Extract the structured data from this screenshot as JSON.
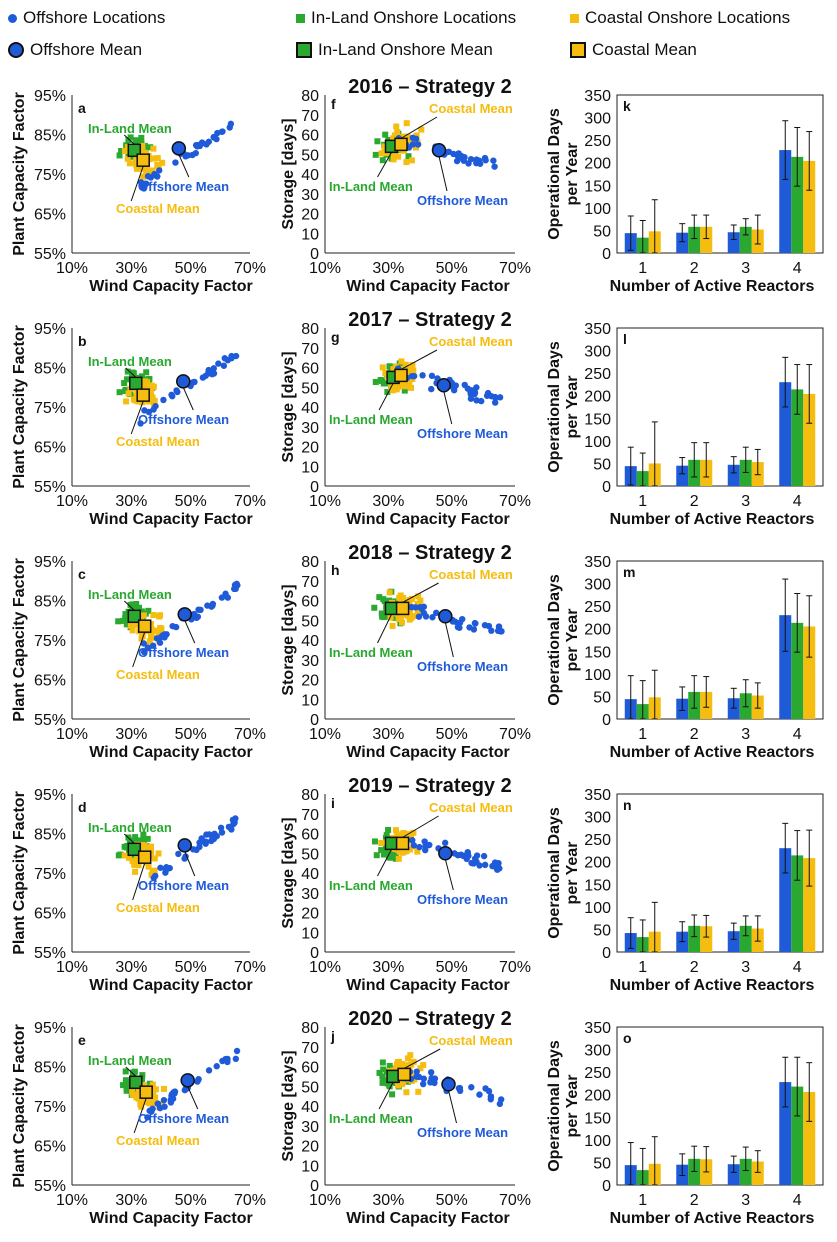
{
  "colors": {
    "offshore": "#1f5bd8",
    "inland": "#2aa830",
    "coastal": "#f5bd0f"
  },
  "legend": {
    "offshore_locations": "Offshore Locations",
    "inland_locations": "In-Land Onshore Locations",
    "coastal_locations": "Coastal Onshore Locations",
    "offshore_mean": "Offshore Mean",
    "inland_mean": "In-Land Onshore Mean",
    "coastal_mean": "Coastal Mean"
  },
  "axes": {
    "wind_label": "Wind Capacity Factor",
    "plant_label": "Plant Capacity Factor",
    "storage_label": "Storage [days]",
    "days_label_line1": "Operational Days",
    "days_label_line2": "per Year",
    "reactors_label": "Number of Active Reactors",
    "pct_ticks": [
      "10%",
      "30%",
      "50%",
      "70%"
    ],
    "plant_ticks": [
      "55%",
      "65%",
      "75%",
      "85%",
      "95%"
    ],
    "storage_ticks": [
      "0",
      "10",
      "20",
      "30",
      "40",
      "50",
      "60",
      "70",
      "80"
    ],
    "days_ticks": [
      "0",
      "50",
      "100",
      "150",
      "200",
      "250",
      "300",
      "350"
    ],
    "reactor_ticks": [
      "1",
      "2",
      "3",
      "4"
    ]
  },
  "annotations": {
    "inland_mean": "In-Land Mean",
    "coastal_mean": "Coastal Mean",
    "offshore_mean": "Offshore Mean"
  },
  "chart_data": [
    {
      "year_title": "2016 – Strategy 2",
      "type": "scatter",
      "panel_letters": [
        "a",
        "f",
        "k"
      ],
      "means": {
        "offshore": {
          "cf": 0.46,
          "plant": 0.815,
          "storage": 52
        },
        "inland": {
          "cf": 0.31,
          "plant": 0.81,
          "storage": 54
        },
        "coastal": {
          "cf": 0.34,
          "plant": 0.785,
          "storage": 55
        }
      },
      "bars": {
        "offshore": [
          44,
          45,
          46,
          228
        ],
        "inland": [
          34,
          58,
          58,
          213
        ],
        "coastal": [
          48,
          58,
          52,
          204
        ]
      },
      "errors": {
        "offshore": [
          38,
          20,
          16,
          65
        ],
        "inland": [
          38,
          26,
          18,
          65
        ],
        "coastal": [
          70,
          26,
          32,
          65
        ]
      }
    },
    {
      "year_title": "2017 – Strategy 2",
      "type": "scatter",
      "panel_letters": [
        "b",
        "g",
        "l"
      ],
      "means": {
        "offshore": {
          "cf": 0.475,
          "plant": 0.815,
          "storage": 51
        },
        "inland": {
          "cf": 0.315,
          "plant": 0.81,
          "storage": 55
        },
        "coastal": {
          "cf": 0.34,
          "plant": 0.78,
          "storage": 56
        }
      },
      "bars": {
        "offshore": [
          44,
          45,
          47,
          230
        ],
        "inland": [
          33,
          58,
          58,
          214
        ],
        "coastal": [
          50,
          58,
          53,
          204
        ]
      },
      "errors": {
        "offshore": [
          42,
          18,
          18,
          55
        ],
        "inland": [
          40,
          38,
          28,
          55
        ],
        "coastal": [
          92,
          38,
          28,
          65
        ]
      }
    },
    {
      "year_title": "2018 – Strategy 2",
      "type": "scatter",
      "panel_letters": [
        "c",
        "h",
        "m"
      ],
      "means": {
        "offshore": {
          "cf": 0.48,
          "plant": 0.815,
          "storage": 52
        },
        "inland": {
          "cf": 0.31,
          "plant": 0.81,
          "storage": 56
        },
        "coastal": {
          "cf": 0.345,
          "plant": 0.785,
          "storage": 56
        }
      },
      "bars": {
        "offshore": [
          44,
          45,
          46,
          230
        ],
        "inland": [
          33,
          60,
          57,
          213
        ],
        "coastal": [
          48,
          60,
          52,
          205
        ]
      },
      "errors": {
        "offshore": [
          52,
          26,
          22,
          80
        ],
        "inland": [
          52,
          36,
          30,
          65
        ],
        "coastal": [
          60,
          34,
          28,
          68
        ]
      }
    },
    {
      "year_title": "2019 – Strategy 2",
      "type": "scatter",
      "panel_letters": [
        "d",
        "i",
        "n"
      ],
      "means": {
        "offshore": {
          "cf": 0.48,
          "plant": 0.82,
          "storage": 50
        },
        "inland": {
          "cf": 0.31,
          "plant": 0.81,
          "storage": 55
        },
        "coastal": {
          "cf": 0.345,
          "plant": 0.79,
          "storage": 55
        }
      },
      "bars": {
        "offshore": [
          42,
          45,
          46,
          230
        ],
        "inland": [
          33,
          58,
          58,
          214
        ],
        "coastal": [
          45,
          57,
          52,
          208
        ]
      },
      "errors": {
        "offshore": [
          34,
          22,
          18,
          55
        ],
        "inland": [
          38,
          24,
          22,
          55
        ],
        "coastal": [
          65,
          24,
          28,
          62
        ]
      }
    },
    {
      "year_title": "2020 – Strategy 2",
      "type": "scatter",
      "panel_letters": [
        "e",
        "j",
        "o"
      ],
      "means": {
        "offshore": {
          "cf": 0.49,
          "plant": 0.815,
          "storage": 51
        },
        "inland": {
          "cf": 0.315,
          "plant": 0.81,
          "storage": 55
        },
        "coastal": {
          "cf": 0.35,
          "plant": 0.785,
          "storage": 56
        }
      },
      "bars": {
        "offshore": [
          44,
          45,
          46,
          228
        ],
        "inland": [
          33,
          58,
          58,
          218
        ],
        "coastal": [
          47,
          57,
          52,
          206
        ]
      },
      "errors": {
        "offshore": [
          50,
          24,
          18,
          55
        ],
        "inland": [
          48,
          28,
          26,
          65
        ],
        "coastal": [
          60,
          28,
          24,
          65
        ]
      }
    }
  ],
  "scatter_axes": {
    "xlim": [
      0.1,
      0.7
    ],
    "plant_ylim": [
      0.55,
      0.95
    ],
    "storage_ylim": [
      0,
      80
    ],
    "days_ylim": [
      0,
      350
    ]
  }
}
